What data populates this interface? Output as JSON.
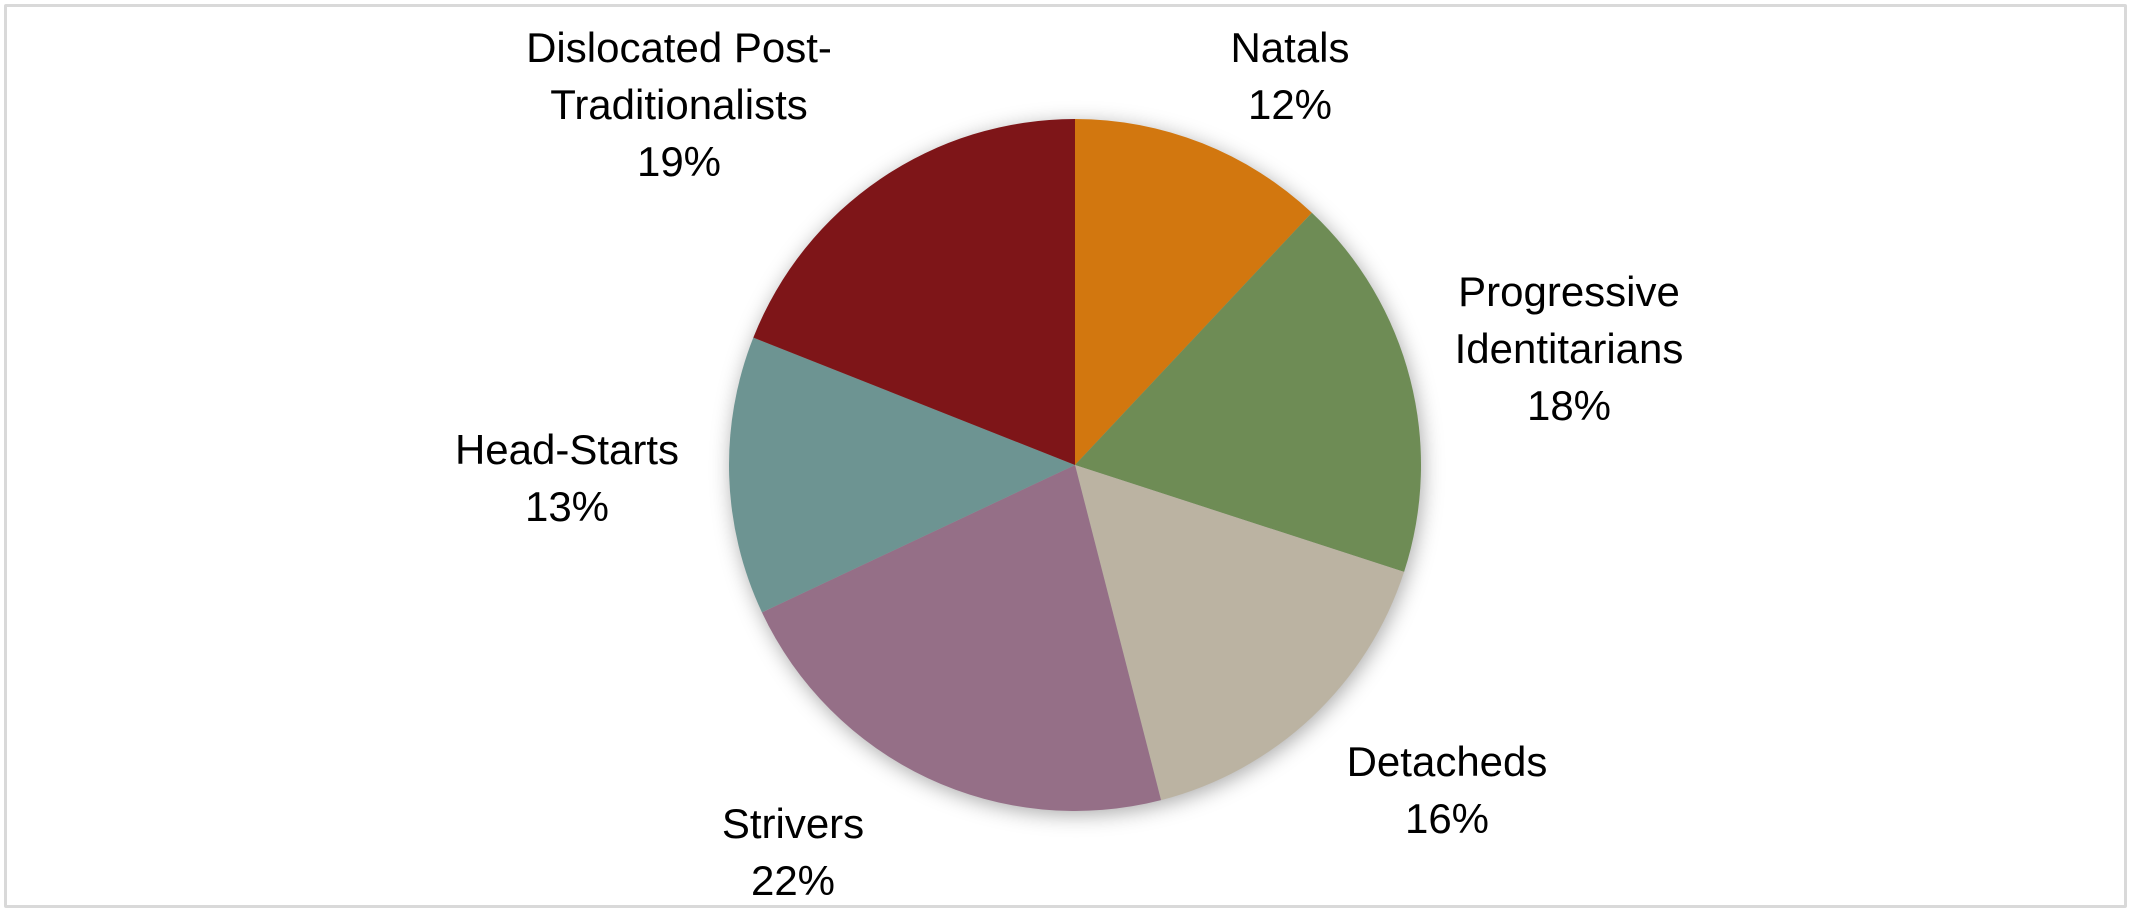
{
  "chart_data": {
    "type": "pie",
    "title": "",
    "categories": [
      "Natals",
      "Progressive Identitarians",
      "Detacheds",
      "Strivers",
      "Head-Starts",
      "Dislocated Post-Traditionalists"
    ],
    "values": [
      12,
      18,
      16,
      22,
      13,
      19
    ],
    "unit": "%",
    "start_angle_deg": 0,
    "direction": "clockwise",
    "legend_position": "none",
    "label_style": "outside-category-and-percent",
    "slices": [
      {
        "name": "Natals",
        "value": 12,
        "color": "#D2770F",
        "label": "Natals\n12%"
      },
      {
        "name": "Progressive Identitarians",
        "value": 18,
        "color": "#6E8C55",
        "label": "Progressive\nIdentitarians\n18%"
      },
      {
        "name": "Detacheds",
        "value": 16,
        "color": "#BBB3A2",
        "label": "Detacheds\n16%"
      },
      {
        "name": "Strivers",
        "value": 22,
        "color": "#956F87",
        "label": "Strivers\n22%"
      },
      {
        "name": "Head-Starts",
        "value": 13,
        "color": "#6D9492",
        "label": "Head-Starts\n13%"
      },
      {
        "name": "Dislocated Post-Traditionalists",
        "value": 19,
        "color": "#7E1518",
        "label": "Dislocated Post-\nTraditionalists\n19%"
      }
    ]
  },
  "frame": {
    "border_color": "#D9D9D9",
    "background_color": "#FFFFFF"
  },
  "text_color": "#000000"
}
